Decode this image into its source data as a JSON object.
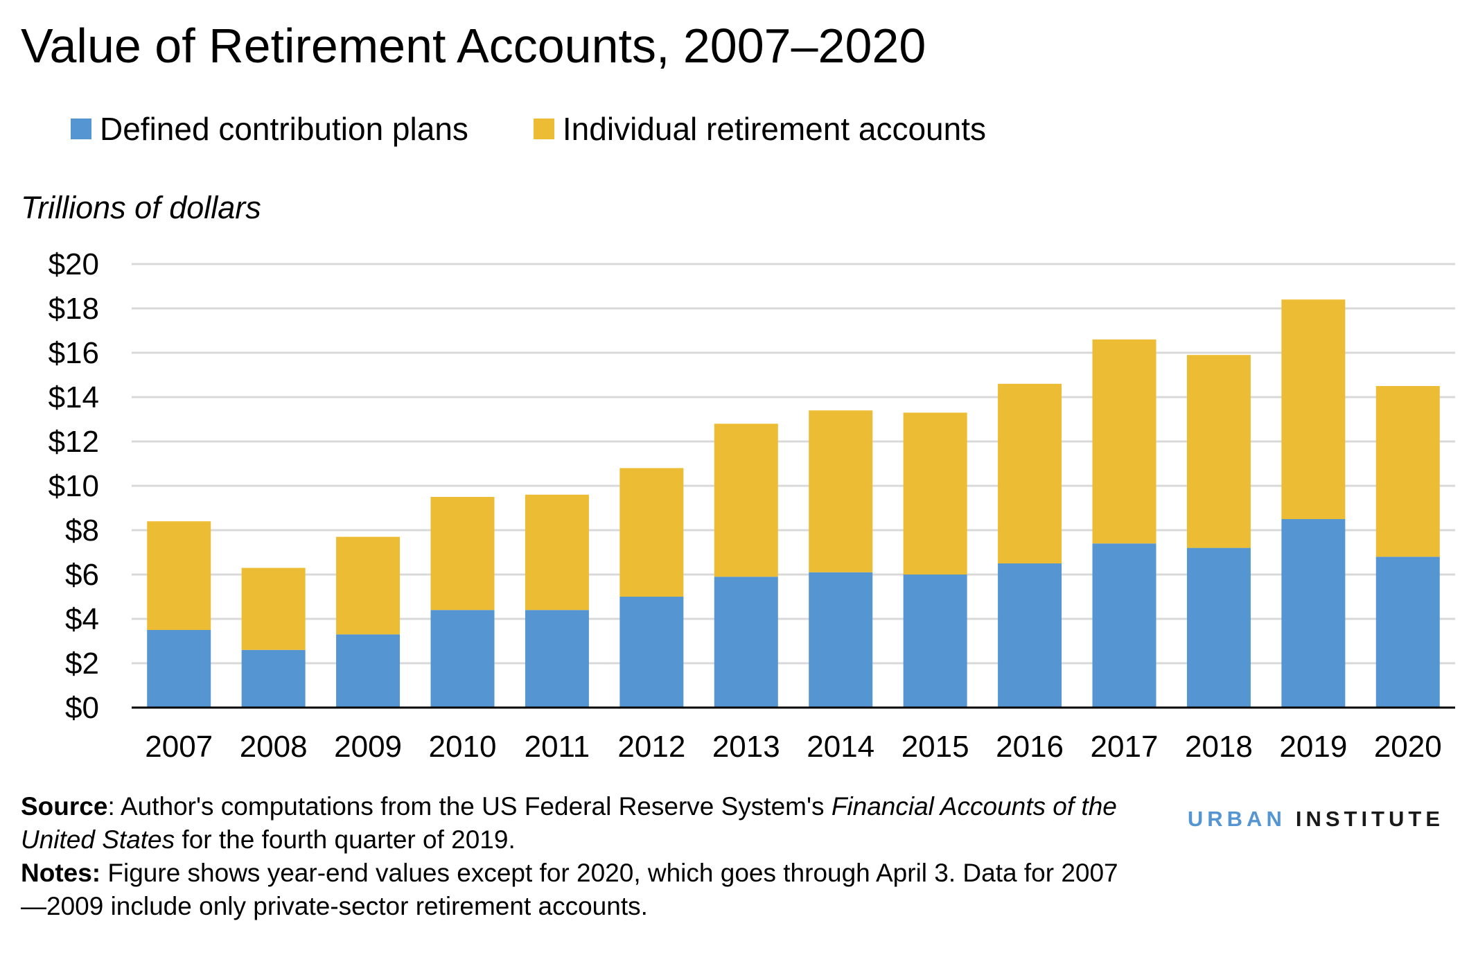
{
  "title": "Value of Retirement Accounts, 2007–2020",
  "legend": [
    {
      "label": "Defined contribution plans",
      "color": "#5596d2"
    },
    {
      "label": "Individual retirement accounts",
      "color": "#ecbd34"
    }
  ],
  "chart_data": {
    "type": "bar",
    "stacked": true,
    "title": "Value of Retirement Accounts, 2007–2020",
    "ylabel": "Trillions of dollars",
    "xlabel": "",
    "ylim": [
      0,
      20
    ],
    "yticks": [
      "$0",
      "$2",
      "$4",
      "$6",
      "$8",
      "$10",
      "$12",
      "$14",
      "$16",
      "$18",
      "$20"
    ],
    "grid": true,
    "legend_position": "top-left",
    "categories": [
      "2007",
      "2008",
      "2009",
      "2010",
      "2011",
      "2012",
      "2013",
      "2014",
      "2015",
      "2016",
      "2017",
      "2018",
      "2019",
      "2020"
    ],
    "series": [
      {
        "name": "Defined contribution plans",
        "color": "#5596d2",
        "values": [
          3.5,
          2.6,
          3.3,
          4.4,
          4.4,
          5.0,
          5.9,
          6.1,
          6.0,
          6.5,
          7.4,
          7.2,
          8.5,
          6.8
        ]
      },
      {
        "name": "Individual retirement accounts",
        "color": "#ecbd34",
        "values": [
          4.9,
          3.7,
          4.4,
          5.1,
          5.2,
          5.8,
          6.9,
          7.3,
          7.3,
          8.1,
          9.2,
          8.7,
          9.9,
          7.7
        ]
      }
    ]
  },
  "notes": {
    "source_label": "Source",
    "source_text_1": ": Author's computations from the US Federal Reserve System's ",
    "source_italic": "Financial Accounts of the United States",
    "source_text_2": " for the fourth quarter of 2019.",
    "notes_label": "Notes:",
    "notes_text": " Figure shows year-end values except for 2020, which goes through April 3. Data for 2007—2009 include only private-sector retirement accounts."
  },
  "logo": {
    "part1": "URBAN",
    "part2": "INSTITUTE",
    "part1_color": "#5596d2",
    "part2_color": "#1a1a1a"
  }
}
